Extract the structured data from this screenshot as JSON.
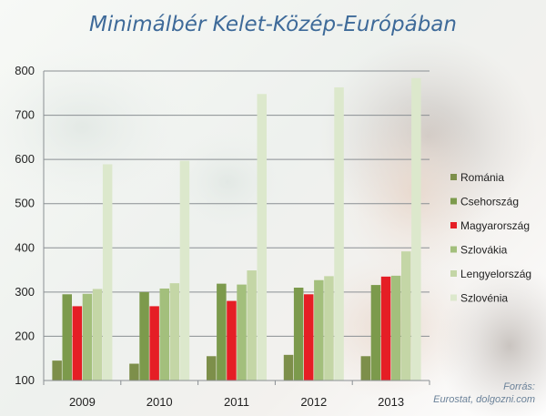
{
  "chart_data": {
    "type": "bar",
    "title": "Minimálbér Kelet-Közép-Európában",
    "categories": [
      "2009",
      "2010",
      "2011",
      "2012",
      "2013"
    ],
    "series": [
      {
        "name": "Románia",
        "color": "#7d8f4a",
        "values": [
          145,
          138,
          155,
          158,
          155
        ]
      },
      {
        "name": "Csehország",
        "color": "#7c9a4c",
        "values": [
          295,
          300,
          319,
          310,
          316
        ]
      },
      {
        "name": "Magyarország",
        "color": "#e51e25",
        "values": [
          268,
          268,
          280,
          295,
          335
        ]
      },
      {
        "name": "Szlovákia",
        "color": "#a3bf7c",
        "values": [
          296,
          308,
          317,
          327,
          337
        ]
      },
      {
        "name": "Lengyelország",
        "color": "#c4d6a6",
        "values": [
          307,
          320,
          349,
          336,
          392
        ]
      },
      {
        "name": "Szlovénia",
        "color": "#dce8cc",
        "values": [
          589,
          597,
          748,
          763,
          784
        ]
      }
    ],
    "ylim": [
      100,
      800
    ],
    "yticks": [
      100,
      200,
      300,
      400,
      500,
      600,
      700,
      800
    ],
    "grid": true,
    "legend": "right"
  },
  "source": {
    "line1": "Forrás:",
    "line2": "Eurostat, dolgozni.com"
  }
}
